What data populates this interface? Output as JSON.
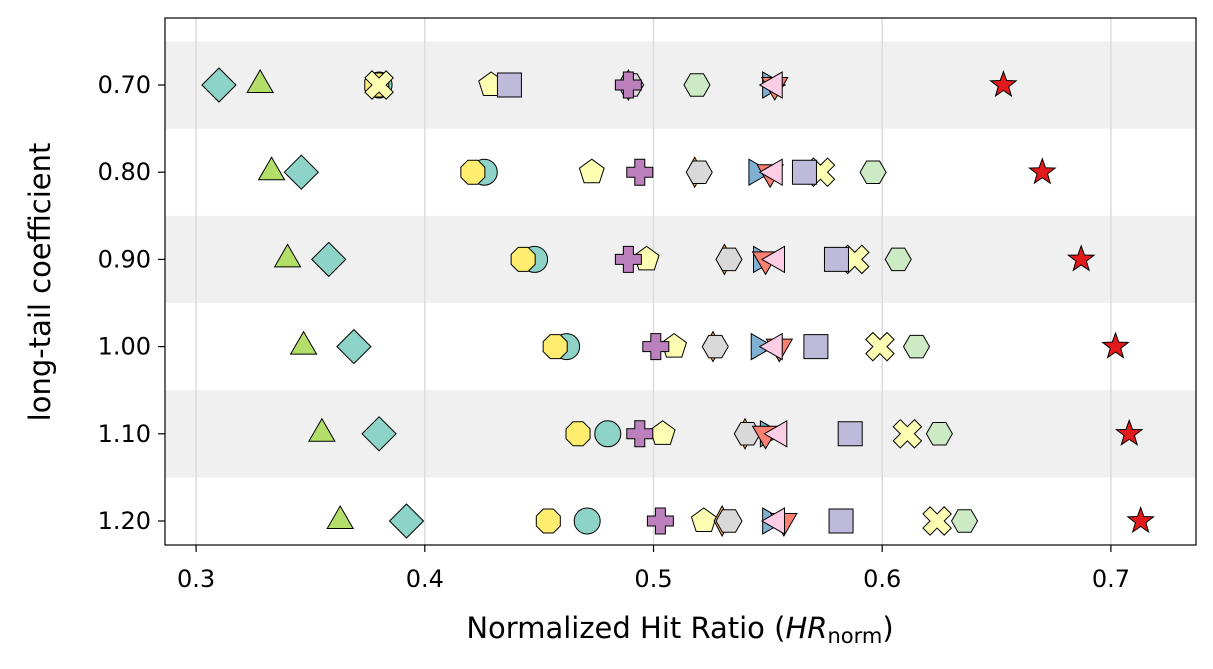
{
  "chart_data": {
    "type": "scatter",
    "ylabel": "long-tail coefficient",
    "xlabel": [
      "Normalized Hit Ratio (",
      "HR",
      "norm",
      ")"
    ],
    "categories": [
      "0.70",
      "0.80",
      "0.90",
      "1.00",
      "1.10",
      "1.20"
    ],
    "xlim": [
      0.2864,
      0.7372
    ],
    "xticks": [
      0.3,
      0.4,
      0.5,
      0.6,
      0.7
    ],
    "grid": true,
    "series": [
      {
        "color": "#8dd3c7",
        "marker": "diamond",
        "values": [
          0.31,
          0.346,
          0.358,
          0.369,
          0.38,
          0.392
        ]
      },
      {
        "color": "#b3de69",
        "marker": "triangle-up",
        "values": [
          0.328,
          0.333,
          0.34,
          0.347,
          0.355,
          0.363
        ]
      },
      {
        "color": "#8dd3c7",
        "marker": "circle",
        "values": [
          0.38,
          0.426,
          0.448,
          0.462,
          0.48,
          0.471
        ]
      },
      {
        "color": "#ffed6f",
        "marker": "octagon",
        "values": [
          0.379,
          0.421,
          0.443,
          0.457,
          0.467,
          0.454
        ]
      },
      {
        "color": "#ffffb3",
        "marker": "x",
        "values": [
          0.38,
          0.573,
          0.588,
          0.599,
          0.611,
          0.624
        ]
      },
      {
        "color": "#ffffb3",
        "marker": "pentagon",
        "values": [
          0.429,
          0.473,
          0.497,
          0.509,
          0.504,
          0.522
        ]
      },
      {
        "color": "#bebada",
        "marker": "square",
        "values": [
          0.437,
          0.566,
          0.58,
          0.571,
          0.586,
          0.582
        ]
      },
      {
        "color": "#fdb462",
        "marker": "thin-diamond",
        "values": [
          0.489,
          0.518,
          0.531,
          0.526,
          0.54,
          0.53
        ]
      },
      {
        "color": "#d9d9d9",
        "marker": "hexagon",
        "values": [
          0.49,
          0.52,
          0.533,
          0.527,
          0.541,
          0.533
        ]
      },
      {
        "color": "#bc80bd",
        "marker": "plus",
        "values": [
          0.489,
          0.494,
          0.489,
          0.501,
          0.494,
          0.503
        ]
      },
      {
        "color": "#ccebc5",
        "marker": "hexagon",
        "values": [
          0.519,
          0.596,
          0.607,
          0.615,
          0.625,
          0.636
        ]
      },
      {
        "color": "#80b1d3",
        "marker": "triangle-right",
        "values": [
          0.551,
          0.545,
          0.547,
          0.546,
          0.55,
          0.551
        ]
      },
      {
        "color": "#fb8072",
        "marker": "triangle-down",
        "values": [
          0.553,
          0.551,
          0.549,
          0.555,
          0.549,
          0.557
        ]
      },
      {
        "color": "#fccde5",
        "marker": "triangle-left",
        "values": [
          0.553,
          0.553,
          0.554,
          0.553,
          0.555,
          0.554
        ]
      },
      {
        "color": "#e31a1c",
        "marker": "star",
        "values": [
          0.653,
          0.67,
          0.687,
          0.702,
          0.708,
          0.713
        ]
      }
    ]
  }
}
